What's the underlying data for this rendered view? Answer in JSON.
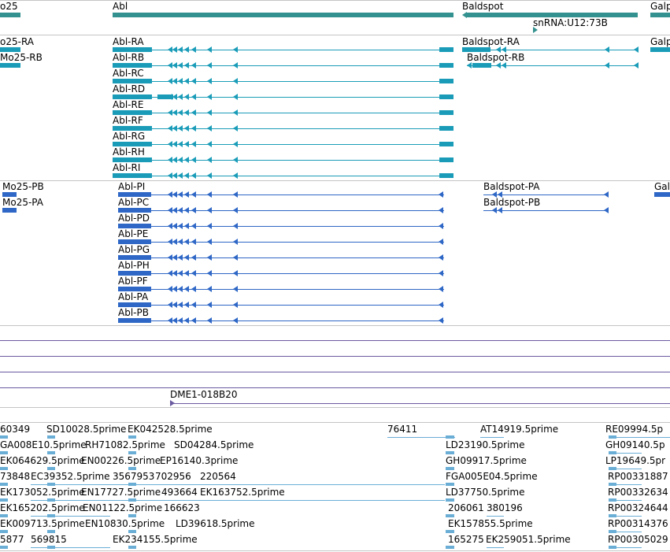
{
  "colors": {
    "gene": "#33918f",
    "transcript": "#1a9cb8",
    "protein": "#2e67c6",
    "clone": "#6a5aa0",
    "est": "#6aaed6"
  },
  "genes": {
    "labels": [
      "o25",
      "Abl",
      "Baldspot",
      "snRNA:U12:73B",
      "Galp"
    ]
  },
  "transcripts": {
    "labels": [
      "o25-RA",
      "Mo25-RB",
      "Abl-RA",
      "Abl-RB",
      "Abl-RC",
      "Abl-RD",
      "Abl-RE",
      "Abl-RF",
      "Abl-RG",
      "Abl-RH",
      "Abl-RI",
      "Baldspot-RA",
      "Baldspot-RB",
      "Galp"
    ]
  },
  "proteins": {
    "labels": [
      "Mo25-PB",
      "Mo25-PA",
      "Abl-PI",
      "Abl-PC",
      "Abl-PD",
      "Abl-PE",
      "Abl-PG",
      "Abl-PH",
      "Abl-PF",
      "Abl-PA",
      "Abl-PB",
      "Baldspot-PA",
      "Baldspot-PB",
      "Gal"
    ]
  },
  "clones": {
    "label": "DME1-018B20"
  },
  "ests": {
    "labels": [
      "60349",
      "SD10028.5prime",
      "EK042528.5prime",
      "76411",
      "AT14919.5prime",
      "RE09994.5p",
      "GA008E10.5prime",
      "RH71082.5prime",
      "SD04284.5prime",
      "LD23190.5prime",
      "GH09140.5p",
      "EK064629.5prime",
      "EN00226.5prime",
      "EP16140.3prime",
      "GH09917.5prime",
      "LP19649.5pr",
      "73848",
      "EC39352.5prime",
      "3567953",
      "702956",
      "220564",
      "FGA005E04.5prime",
      "RP00331887",
      "EK173052.5prime",
      "EN17727.5prime",
      "493664",
      "EK163752.5prime",
      "LD37750.5prime",
      "RP00332634",
      "EK165202.5prime",
      "EN01122.5prime",
      "166623",
      "206061",
      "380196",
      "RP00324644",
      "EK009713.5prime",
      "EN10830.5prime",
      "LD39618.5prime",
      "EK157855.5prime",
      "RP00314376",
      "5877",
      "569815",
      "EK234155.5prime",
      "165275",
      "EK259051.5prime",
      "RP00305029"
    ]
  }
}
